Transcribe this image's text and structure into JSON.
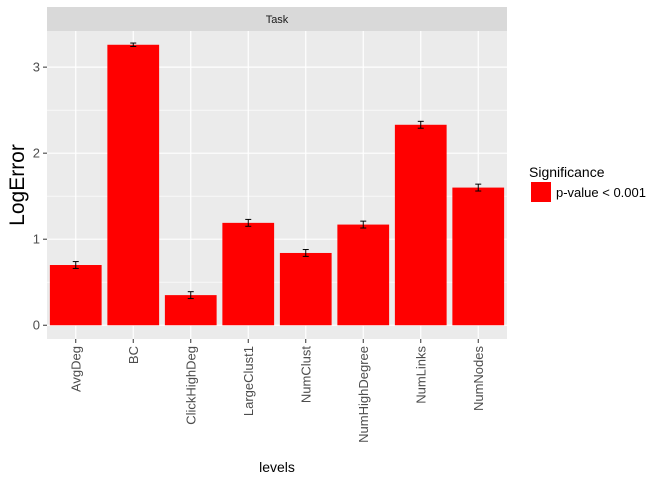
{
  "chart_data": {
    "type": "bar",
    "facet_label": "Task",
    "categories": [
      "AvgDeg",
      "BC",
      "ClickHighDeg",
      "LargeClust1",
      "NumClust",
      "NumHighDegree",
      "NumLinks",
      "NumNodes"
    ],
    "values": [
      0.7,
      3.26,
      0.35,
      1.19,
      0.84,
      1.17,
      2.33,
      1.6
    ],
    "errors": [
      0.04,
      0.02,
      0.04,
      0.04,
      0.04,
      0.04,
      0.04,
      0.04
    ],
    "xlabel": "levels",
    "ylabel": "LogError",
    "ylim": [
      -0.16,
      3.42
    ],
    "yticks": [
      0,
      1,
      2,
      3
    ],
    "grid": true,
    "bar_color": "#ff0000",
    "panel_color": "#ebebeb",
    "strip_color": "#d9d9d9",
    "legend": {
      "title": "Significance",
      "position": "right",
      "entries": [
        {
          "label": "p-value < 0.001",
          "color": "#ff0000"
        }
      ]
    }
  }
}
